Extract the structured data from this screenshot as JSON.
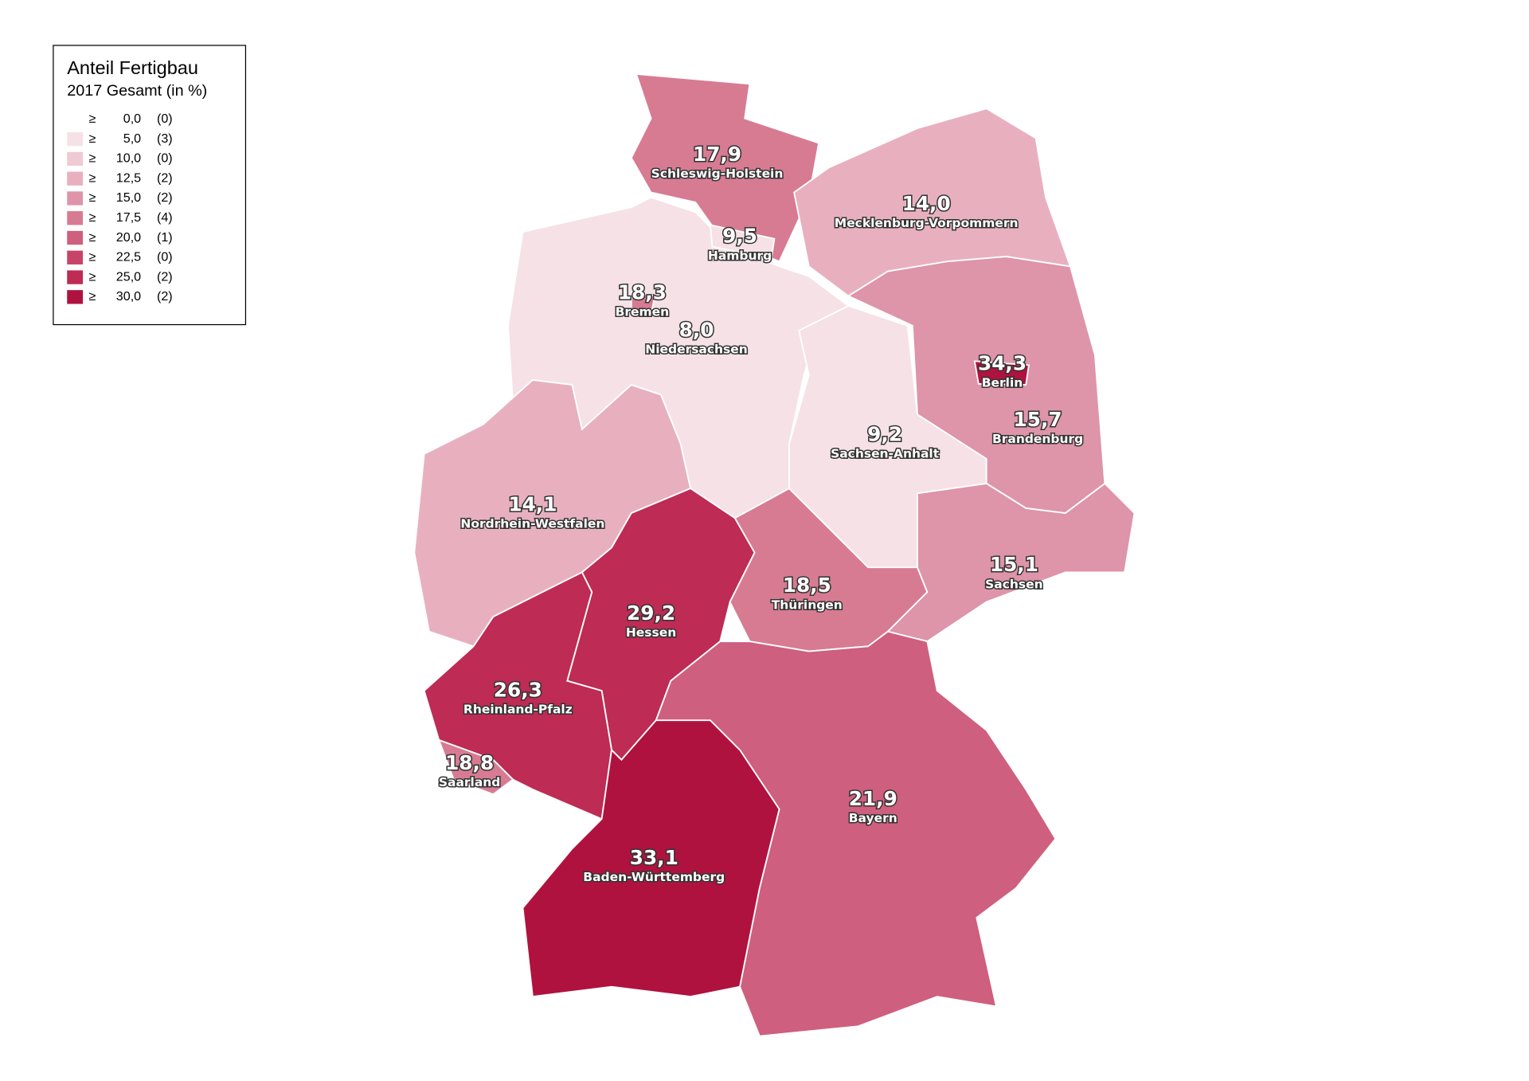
{
  "legend": {
    "title": "Anteil Fertigbau",
    "subtitle": "2017 Gesamt (in %)",
    "symbol": "≥",
    "thresholds": [
      {
        "value": 0,
        "label": "0,0"
      },
      {
        "value": 5,
        "label": "5,0"
      },
      {
        "value": 10,
        "label": "10,0"
      },
      {
        "value": 12.5,
        "label": "12,5"
      },
      {
        "value": 15,
        "label": "15,0"
      },
      {
        "value": 17.5,
        "label": "17,5"
      },
      {
        "value": 20,
        "label": "20,0"
      },
      {
        "value": 22.5,
        "label": "22,5"
      },
      {
        "value": 25,
        "label": "25,0"
      },
      {
        "value": 30,
        "label": "30,0"
      }
    ],
    "counts": [
      {
        "value": 0,
        "label": "(0)"
      },
      {
        "value": 3,
        "label": "(3)"
      },
      {
        "value": 0,
        "label": "(0)"
      },
      {
        "value": 2,
        "label": "(2)"
      },
      {
        "value": 2,
        "label": "(2)"
      },
      {
        "value": 4,
        "label": "(4)"
      },
      {
        "value": 1,
        "label": "(1)"
      },
      {
        "value": 0,
        "label": "(0)"
      },
      {
        "value": 2,
        "label": "(2)"
      },
      {
        "value": 2,
        "label": "(2)"
      }
    ],
    "colors": [
      "#ffffff",
      "#f5e1e6",
      "#efc9d3",
      "#e8b0bf",
      "#de94a9",
      "#d77b93",
      "#cf5f7e",
      "#c74469",
      "#be2b54",
      "#b0123f"
    ]
  },
  "regions": {
    "names": [
      "Schleswig-Holstein",
      "Mecklenburg-Vorpommern",
      "Niedersachsen",
      "Sachsen-Anhalt",
      "Brandenburg",
      "Nordrhein-Westfalen",
      "Hessen",
      "Thüringen",
      "Sachsen",
      "Rheinland-Pfalz",
      "Saarland",
      "Bayern",
      "Baden-Württemberg",
      "Hamburg",
      "Bremen",
      "Berlin"
    ],
    "values": [
      17.9,
      14.0,
      8.0,
      9.2,
      15.7,
      14.1,
      29.2,
      18.5,
      15.1,
      26.3,
      18.8,
      21.9,
      33.1,
      9.5,
      18.3,
      34.3
    ],
    "value_labels": [
      "17,9",
      "14,0",
      "8,0",
      "9,2",
      "15,7",
      "14,1",
      "29,2",
      "18,5",
      "15,1",
      "26,3",
      "18,8",
      "21,9",
      "33,1",
      "9,5",
      "18,3",
      "34,3"
    ]
  }
}
